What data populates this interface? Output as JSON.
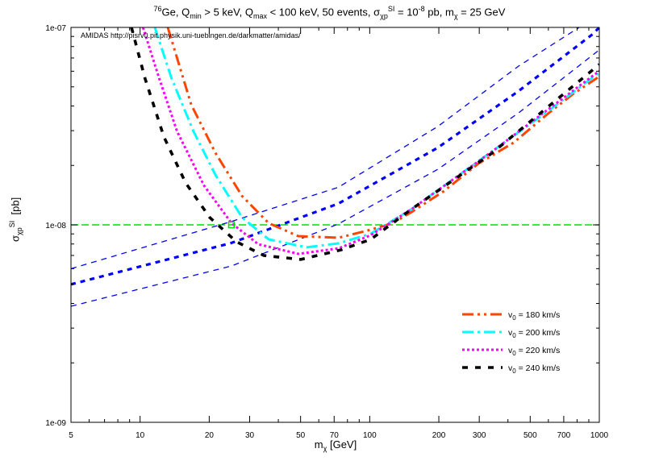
{
  "title": {
    "iso": "76",
    "element": "Ge, Q",
    "qmin_sub": "min",
    "qmin_text": " > 5 keV, Q",
    "qmax_sub": "max",
    "qmax_text": " < 100 keV, 50 events, σ",
    "sigma_sub": "χp",
    "sigma_sup": "SI",
    "eq_text": " = 10",
    "exp_sup": "-8",
    "rest_text": " pb, m",
    "m_sub": "χ",
    "end_text": " = 25 GeV"
  },
  "annotation": "AMIDAS   http://pisrv0.pit.physik.uni-tuebingen.de/darkmatter/amidas/",
  "chart_data": {
    "type": "line",
    "xscale": "log",
    "yscale": "log",
    "xlim": [
      5,
      1000
    ],
    "ylim": [
      1e-09,
      1e-07
    ],
    "xlabel": {
      "main": "m",
      "sub": "χ",
      "unit": " [GeV]"
    },
    "ylabel": {
      "main": "σ",
      "sub": "χp",
      "sup": "SI",
      "unit": "  [pb]"
    },
    "xticks": [
      5,
      10,
      20,
      30,
      50,
      70,
      100,
      200,
      300,
      500,
      700,
      1000
    ],
    "xtick_labels": [
      "5",
      "10",
      "20",
      "30",
      "50",
      "70",
      "100",
      "200",
      "300",
      "500",
      "700",
      "1000"
    ],
    "yticks": [
      1e-07,
      1e-08,
      1e-09
    ],
    "ytick_labels": [
      "1e-07",
      "1e-08",
      "1e-09"
    ],
    "legend_position": "bottom-right",
    "reference_line": {
      "y": 1e-08,
      "color": "#00e000"
    },
    "input_point": {
      "x": 25,
      "y": 1e-08,
      "color": "#00e000"
    },
    "bands": [
      {
        "style": "thin",
        "color": "#0000ff",
        "points": [
          [
            5,
            6e-09
          ],
          [
            25,
            1.04e-08
          ],
          [
            73,
            1.55e-08
          ],
          [
            198,
            3.15e-08
          ],
          [
            445,
            6.37e-08
          ],
          [
            817,
            1e-07
          ]
        ]
      },
      {
        "style": "thick",
        "color": "#0000ff",
        "points": [
          [
            5,
            5e-09
          ],
          [
            25,
            8.1e-09
          ],
          [
            73,
            1.28e-08
          ],
          [
            198,
            2.46e-08
          ],
          [
            445,
            4.76e-08
          ],
          [
            938,
            9.27e-08
          ],
          [
            1000,
            1e-07
          ]
        ]
      },
      {
        "style": "thin",
        "color": "#0000ff",
        "points": [
          [
            5,
            3.87e-09
          ],
          [
            25,
            6.19e-09
          ],
          [
            73,
            1.01e-08
          ],
          [
            198,
            1.91e-08
          ],
          [
            445,
            3.69e-08
          ],
          [
            1000,
            7.69e-08
          ]
        ]
      }
    ],
    "series": [
      {
        "name": "v",
        "sub": "0",
        "label": " = 180 km/s",
        "color": "#ff4500",
        "dash": "dashdotdot",
        "points": [
          [
            13.2,
            1e-07
          ],
          [
            16.7,
            4.06e-08
          ],
          [
            21.3,
            2.31e-08
          ],
          [
            27.8,
            1.4e-08
          ],
          [
            36.3,
            1.02e-08
          ],
          [
            48.9,
            8.77e-09
          ],
          [
            73.3,
            8.6e-09
          ],
          [
            101,
            9.45e-09
          ],
          [
            126,
            1.02e-08
          ],
          [
            152,
            1.16e-08
          ],
          [
            210,
            1.48e-08
          ],
          [
            297,
            2.04e-08
          ],
          [
            424,
            2.61e-08
          ],
          [
            586,
            3.59e-08
          ],
          [
            766,
            4.59e-08
          ],
          [
            1000,
            5.64e-08
          ]
        ]
      },
      {
        "name": "v",
        "sub": "0",
        "label": " = 200 km/s",
        "color": "#00ffff",
        "dash": "dashdot",
        "points": [
          [
            11.6,
            1e-07
          ],
          [
            13.7,
            5.53e-08
          ],
          [
            17.1,
            2.97e-08
          ],
          [
            21.3,
            1.79e-08
          ],
          [
            27.8,
            1.09e-08
          ],
          [
            36.3,
            8.44e-09
          ],
          [
            53.1,
            7.69e-09
          ],
          [
            73.3,
            8.06e-09
          ],
          [
            101,
            9.02e-09
          ],
          [
            152,
            1.2e-08
          ],
          [
            297,
            2.1e-08
          ],
          [
            586,
            3.7e-08
          ],
          [
            1000,
            5.91e-08
          ]
        ]
      },
      {
        "name": "v",
        "sub": "0",
        "label": " = 220 km/s",
        "color": "#ff00ff",
        "dash": "dotted",
        "points": [
          [
            10.3,
            1e-07
          ],
          [
            12.1,
            5.53e-08
          ],
          [
            14.5,
            2.97e-08
          ],
          [
            19.0,
            1.58e-08
          ],
          [
            25.0,
            1.02e-08
          ],
          [
            32.7,
            7.98e-09
          ],
          [
            48.9,
            7.13e-09
          ],
          [
            73.3,
            7.61e-09
          ],
          [
            101,
            8.86e-09
          ],
          [
            152,
            1.2e-08
          ],
          [
            341,
            2.35e-08
          ],
          [
            1000,
            6.02e-08
          ]
        ]
      },
      {
        "name": "v",
        "sub": "0",
        "label": " = 240 km/s",
        "color": "#000000",
        "dash": "dashed",
        "points": [
          [
            9.17,
            1e-07
          ],
          [
            10.5,
            5.53e-08
          ],
          [
            12.7,
            2.79e-08
          ],
          [
            15.8,
            1.63e-08
          ],
          [
            20.1,
            1.09e-08
          ],
          [
            26.3,
            8.21e-09
          ],
          [
            34.6,
            7e-09
          ],
          [
            50.1,
            6.68e-09
          ],
          [
            75.1,
            7.47e-09
          ],
          [
            101,
            8.44e-09
          ],
          [
            152,
            1.2e-08
          ],
          [
            341,
            2.31e-08
          ],
          [
            1000,
            6.49e-08
          ]
        ]
      }
    ]
  }
}
